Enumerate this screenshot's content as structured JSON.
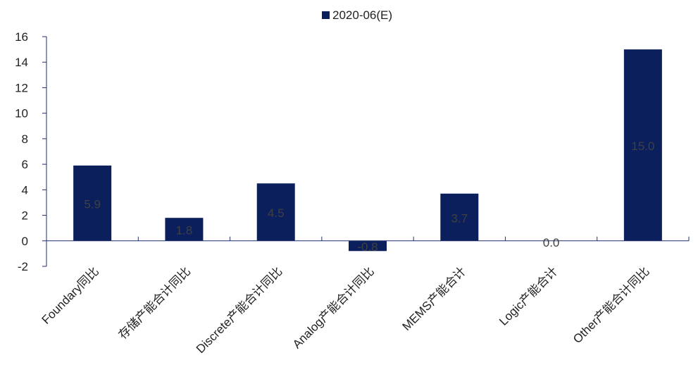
{
  "chart_data": {
    "type": "bar",
    "categories": [
      "Foundary同比",
      "存储产能合计同比",
      "Discrete产能合计同比",
      "Analog产能合计同比",
      "MEMS产能合计",
      "Logic产能合计",
      "Other产能合计同比"
    ],
    "series": [
      {
        "name": "2020-06(E)",
        "values": [
          5.9,
          1.8,
          4.5,
          -0.8,
          3.7,
          0.0,
          15.0
        ],
        "color": "#0b1f5c"
      }
    ],
    "data_labels": [
      "5.9",
      "1.8",
      "4.5",
      "-0.8",
      "3.7",
      "0.0",
      "15.0"
    ],
    "y_ticks": [
      -2,
      0,
      2,
      4,
      6,
      8,
      10,
      12,
      14,
      16
    ],
    "ylim": [
      -2,
      16
    ],
    "grid": false,
    "legend_position": "top-center",
    "label_color": "#404040",
    "axis_color": "#1f2f6b"
  }
}
